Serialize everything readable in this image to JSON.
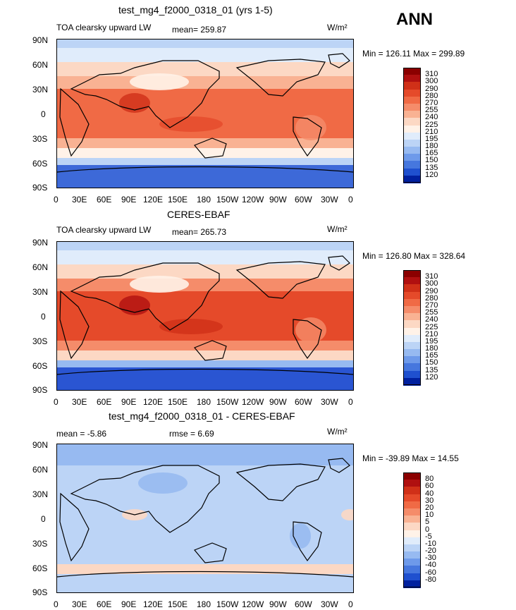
{
  "season_label": "ANN",
  "units_label": "W/m²",
  "axes": {
    "lat_ticks": [
      "90N",
      "60N",
      "30N",
      "0",
      "30S",
      "60S",
      "90S"
    ],
    "lon_ticks": [
      "0",
      "30E",
      "60E",
      "90E",
      "120E",
      "150E",
      "180",
      "150W",
      "120W",
      "90W",
      "60W",
      "30W",
      "0"
    ]
  },
  "panels": [
    {
      "title": "test_mg4_f2000_0318_01 (yrs 1-5)",
      "left_text": "TOA clearsky upward LW",
      "mean_text": "mean= 259.87",
      "rmse_text": "",
      "minmax_text": "Min = 126.11 Max = 299.89",
      "colorbar": {
        "labels": [
          "310",
          "300",
          "290",
          "280",
          "270",
          "255",
          "240",
          "225",
          "210",
          "195",
          "180",
          "165",
          "150",
          "135",
          "120"
        ],
        "colors": [
          "#8b0000",
          "#b01010",
          "#d03018",
          "#e54a2a",
          "#f06a45",
          "#f58c6a",
          "#f9b293",
          "#fcd8c4",
          "#fff2e8",
          "#e0ecfb",
          "#bcd4f6",
          "#97baf1",
          "#6e9aea",
          "#4677de",
          "#1f50cf",
          "#00209f"
        ]
      }
    },
    {
      "title": "CERES-EBAF",
      "left_text": "TOA clearsky upward LW",
      "mean_text": "mean= 265.73",
      "rmse_text": "",
      "minmax_text": "Min = 126.80 Max = 328.64",
      "colorbar": {
        "labels": [
          "310",
          "300",
          "290",
          "280",
          "270",
          "255",
          "240",
          "225",
          "210",
          "195",
          "180",
          "165",
          "150",
          "135",
          "120"
        ],
        "colors": [
          "#8b0000",
          "#b01010",
          "#d03018",
          "#e54a2a",
          "#f06a45",
          "#f58c6a",
          "#f9b293",
          "#fcd8c4",
          "#fff2e8",
          "#e0ecfb",
          "#bcd4f6",
          "#97baf1",
          "#6e9aea",
          "#4677de",
          "#1f50cf",
          "#00209f"
        ]
      }
    },
    {
      "title": "test_mg4_f2000_0318_01 - CERES-EBAF",
      "left_text": "mean =   -5.86",
      "mean_text": "",
      "rmse_text": "rmse =    6.69",
      "minmax_text": "Min = -39.89 Max =  14.55",
      "colorbar": {
        "labels": [
          "80",
          "60",
          "40",
          "30",
          "20",
          "10",
          "5",
          "0",
          "-5",
          "-10",
          "-20",
          "-30",
          "-40",
          "-60",
          "-80"
        ],
        "colors": [
          "#8b0000",
          "#b01010",
          "#d03018",
          "#e54a2a",
          "#f06a45",
          "#f58c6a",
          "#f9b293",
          "#fcd8c4",
          "#fff2e8",
          "#e0ecfb",
          "#bcd4f6",
          "#97baf1",
          "#6e9aea",
          "#4677de",
          "#1f50cf",
          "#00209f"
        ]
      }
    }
  ]
}
